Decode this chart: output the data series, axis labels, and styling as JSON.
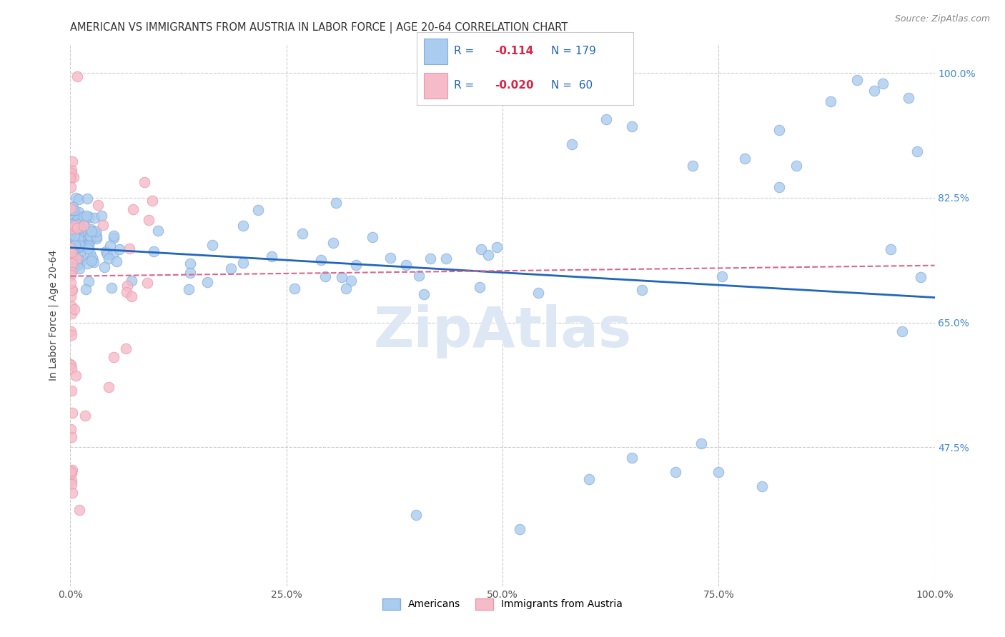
{
  "title": "AMERICAN VS IMMIGRANTS FROM AUSTRIA IN LABOR FORCE | AGE 20-64 CORRELATION CHART",
  "source": "Source: ZipAtlas.com",
  "ylabel": "In Labor Force | Age 20-64",
  "xlim": [
    0.0,
    1.0
  ],
  "ylim": [
    0.28,
    1.04
  ],
  "yticks": [
    0.475,
    0.65,
    0.825,
    1.0
  ],
  "ytick_labels": [
    "47.5%",
    "65.0%",
    "82.5%",
    "100.0%"
  ],
  "xticks": [
    0.0,
    0.25,
    0.5,
    0.75,
    1.0
  ],
  "xtick_labels": [
    "0.0%",
    "25.0%",
    "50.0%",
    "75.0%",
    "100.0%"
  ],
  "R_blue": -0.114,
  "N_blue": 179,
  "R_pink": -0.02,
  "N_pink": 60,
  "color_blue": "#aaccee",
  "color_pink": "#f5bbc8",
  "color_blue_edge": "#88aadd",
  "color_pink_edge": "#e899aa",
  "color_blue_line": "#2266bb",
  "color_pink_line": "#dd6688",
  "legend_blue_label": "Americans",
  "legend_pink_label": "Immigrants from Austria",
  "background_color": "#ffffff",
  "grid_color": "#cccccc",
  "title_color": "#333333",
  "axis_label_color": "#444444",
  "tick_label_color_right": "#4488cc",
  "tick_label_color_bottom": "#555555",
  "watermark_text": "ZipAtlas",
  "watermark_color": "#dde8f4",
  "source_text": "Source: ZipAtlas.com",
  "legend_R_color": "#2266bb",
  "legend_val_color": "#dd2244",
  "legend_N_color": "#2266bb"
}
